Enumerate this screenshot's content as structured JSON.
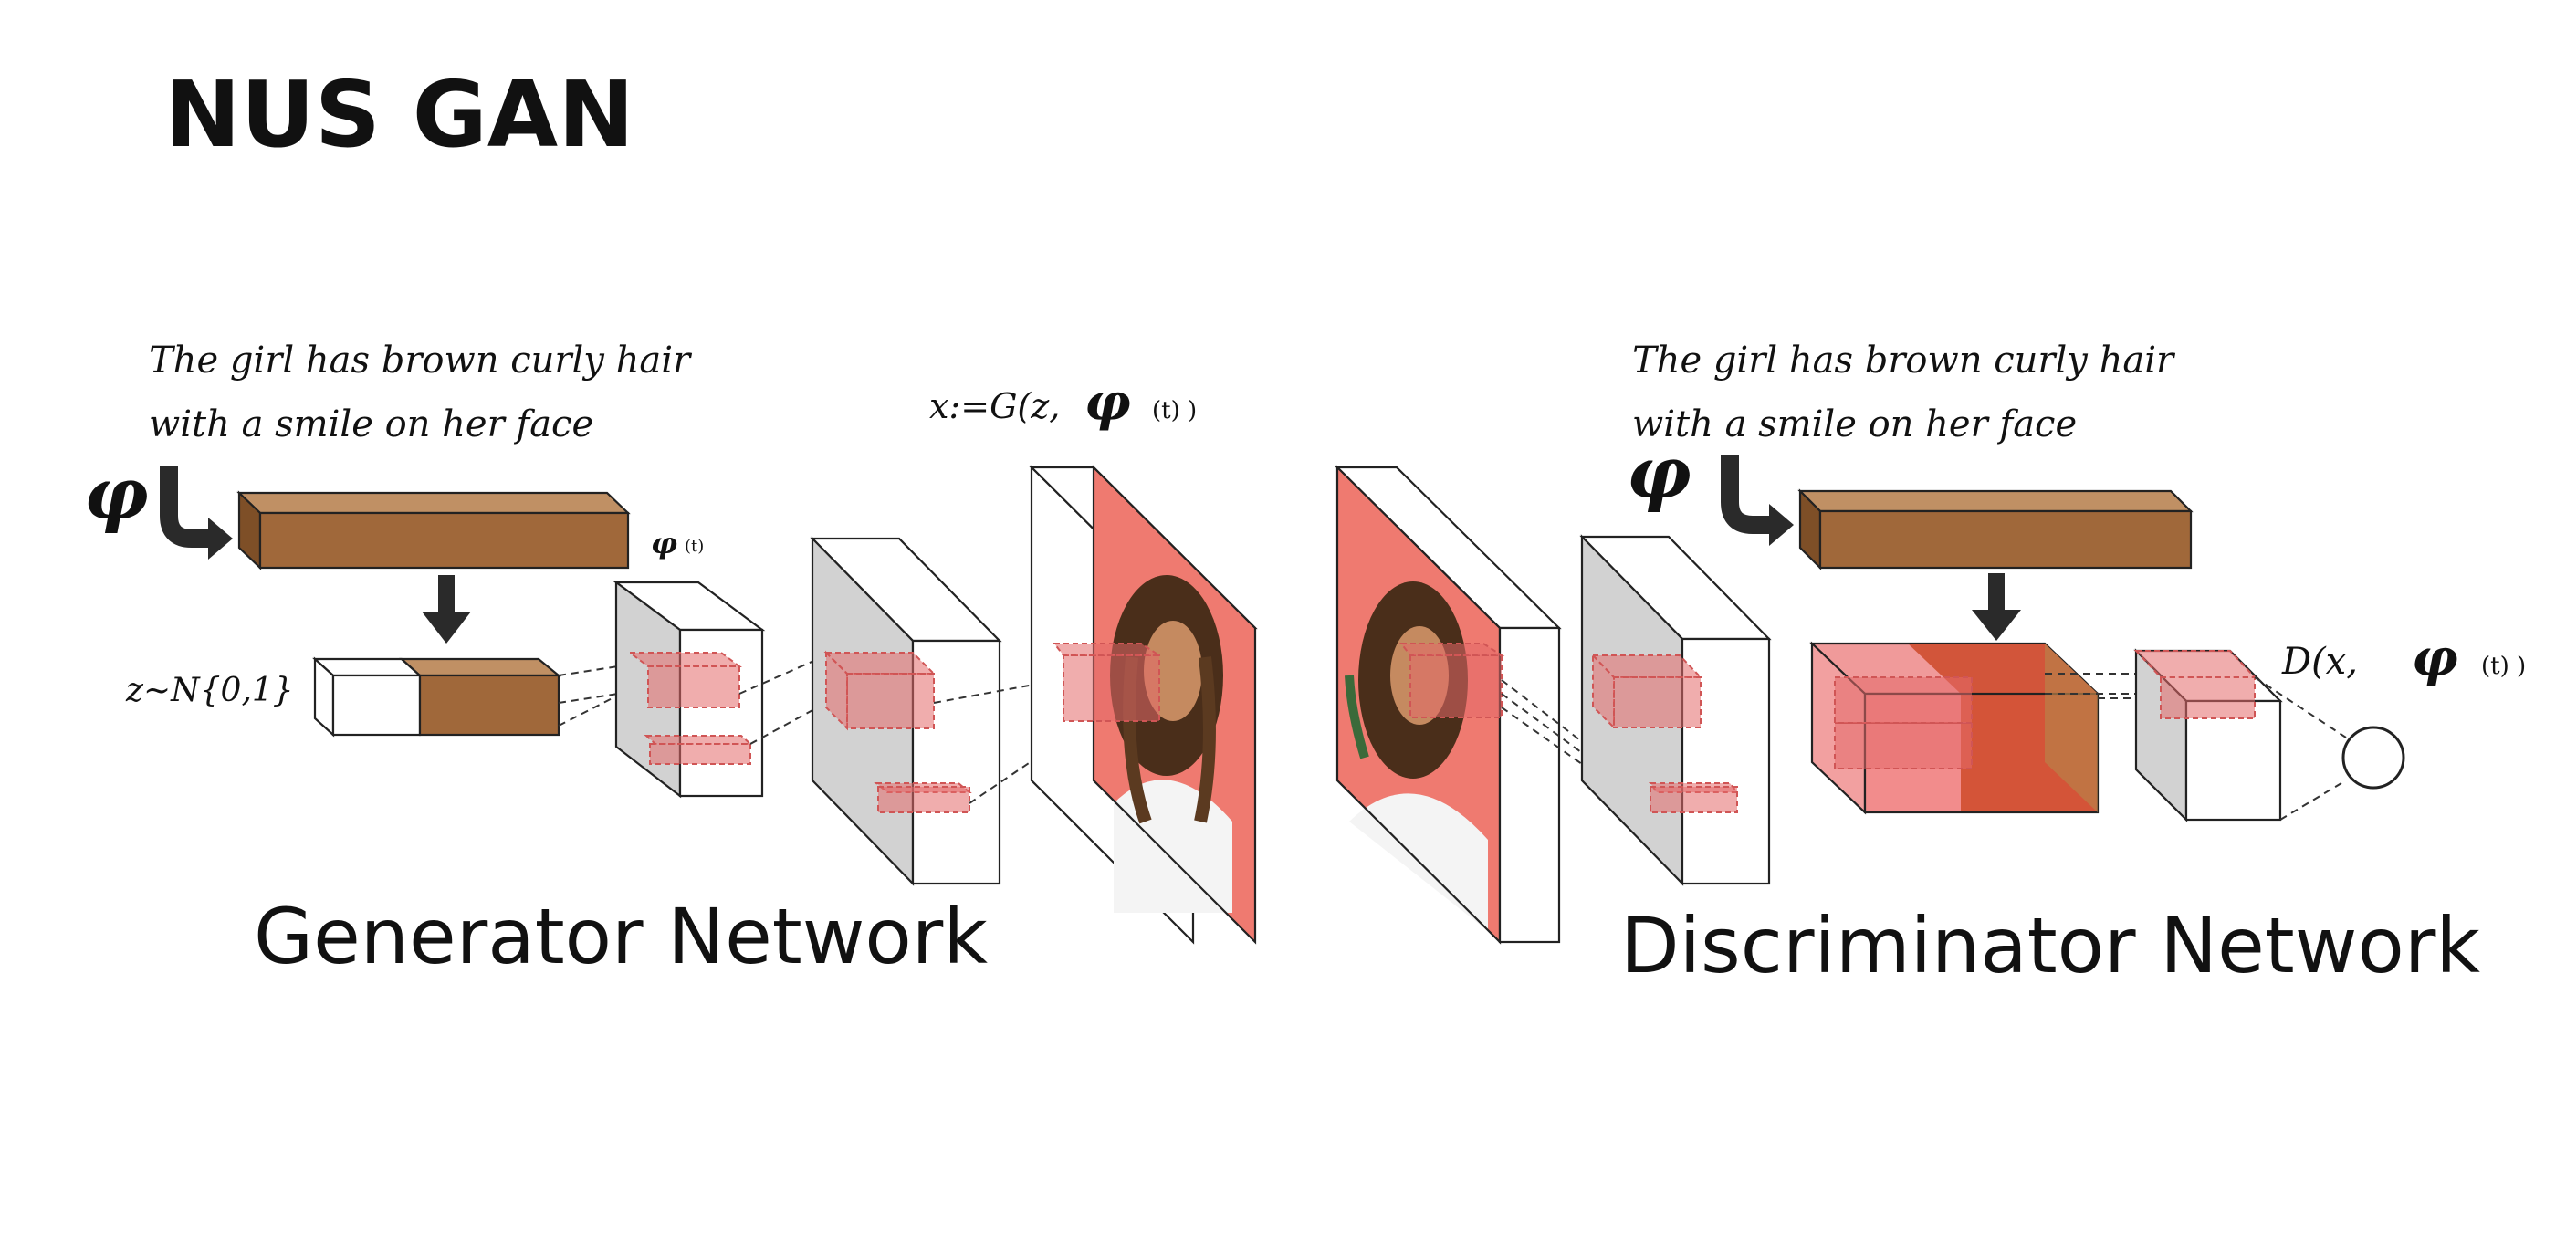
{
  "title": "NUS GAN",
  "generator": {
    "caption_line1": "The girl has brown curly hair",
    "caption_line2": "with a smile on her face",
    "phi_symbol": "φ",
    "phi_t_label": "φ",
    "phi_t_sub": "(t)",
    "z_label": "z~N{0,1}",
    "output_label_main": "x:=G(z,",
    "output_label_phi": "φ",
    "output_label_tail": "(t) )",
    "section_label": "Generator Network"
  },
  "discriminator": {
    "caption_line1": "The girl has brown curly hair",
    "caption_line2": "with a smile on her face",
    "phi_symbol": "φ",
    "output_label_main": "D(x,",
    "output_label_phi": "φ",
    "output_label_tail": "(t) )",
    "section_label": "Discriminator Network"
  },
  "colors": {
    "embedding_brown": "#a0683a",
    "embedding_top": "#c09064",
    "feature_pink": "#e46a6a",
    "photo_bg": "#ef7a70",
    "gray_face": "#d2d2d2"
  }
}
